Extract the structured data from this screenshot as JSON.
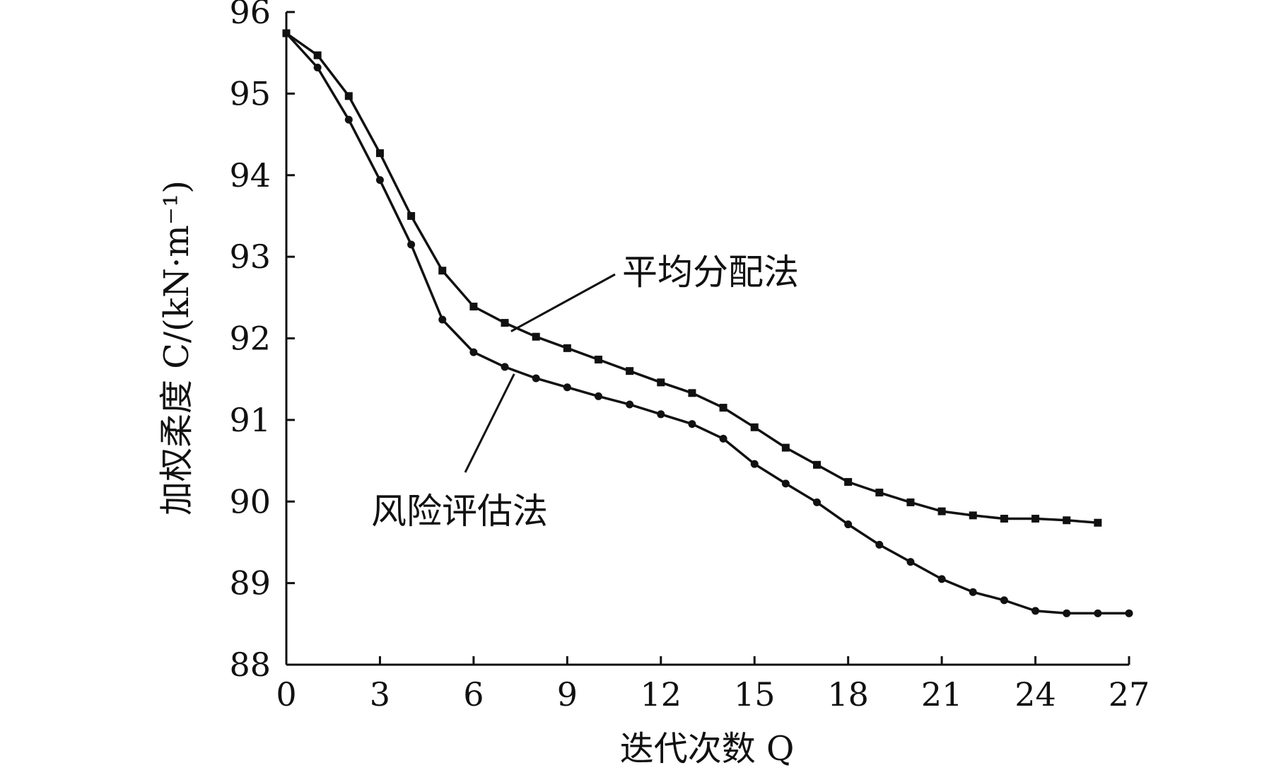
{
  "chart_data": {
    "type": "line",
    "xlabel": "迭代次数 Q",
    "ylabel": "加权柔度 C/(kN·m⁻¹)",
    "xlim": [
      0,
      27
    ],
    "ylim": [
      88,
      96
    ],
    "xticks": [
      0,
      3,
      6,
      9,
      12,
      15,
      18,
      21,
      24,
      27
    ],
    "yticks": [
      88,
      89,
      90,
      91,
      92,
      93,
      94,
      95,
      96
    ],
    "grid": false,
    "legend": "inline labels with leader lines",
    "series": [
      {
        "name": "平均分配法",
        "marker": "square",
        "color": "#111111",
        "x": [
          0,
          1,
          2,
          3,
          4,
          5,
          6,
          7,
          8,
          9,
          10,
          11,
          12,
          13,
          14,
          15,
          16,
          17,
          18,
          19,
          20,
          21,
          22,
          23,
          24,
          25,
          26
        ],
        "values": [
          95.74,
          95.47,
          94.97,
          94.27,
          93.5,
          92.83,
          92.39,
          92.19,
          92.02,
          91.88,
          91.74,
          91.6,
          91.46,
          91.33,
          91.15,
          90.91,
          90.66,
          90.45,
          90.24,
          90.11,
          89.99,
          89.88,
          89.83,
          89.79,
          89.79,
          89.77,
          89.74
        ]
      },
      {
        "name": "风险评估法",
        "marker": "circle",
        "color": "#111111",
        "x": [
          0,
          1,
          2,
          3,
          4,
          5,
          6,
          7,
          8,
          9,
          10,
          11,
          12,
          13,
          14,
          15,
          16,
          17,
          18,
          19,
          20,
          21,
          22,
          23,
          24,
          25,
          26,
          27
        ],
        "values": [
          95.74,
          95.32,
          94.68,
          93.94,
          93.15,
          92.23,
          91.83,
          91.65,
          91.51,
          91.4,
          91.29,
          91.19,
          91.07,
          90.95,
          90.77,
          90.46,
          90.22,
          89.99,
          89.72,
          89.47,
          89.26,
          89.05,
          88.89,
          88.79,
          88.66,
          88.63,
          88.63,
          88.63
        ]
      }
    ]
  }
}
